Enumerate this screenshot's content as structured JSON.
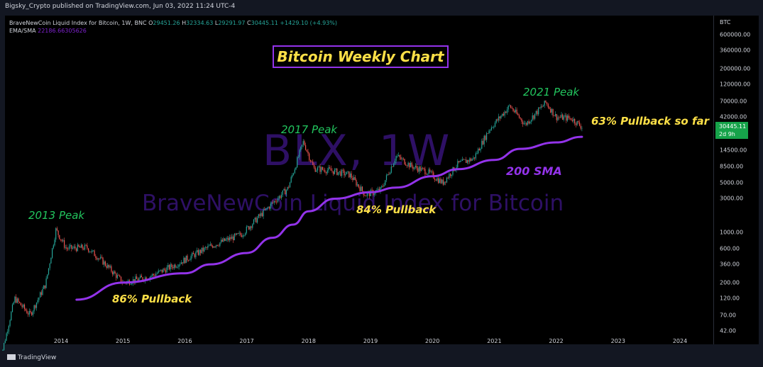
{
  "header": {
    "publisher": "Bigsky_Crypto published on TradingView.com, Jun 03, 2022 11:24 UTC-4"
  },
  "legend": {
    "symbol": "BraveNewCoin Liquid Index for Bitcoin, 1W, BNC",
    "open_label": "O",
    "open": "29451.26",
    "high_label": "H",
    "high": "32334.63",
    "low_label": "L",
    "low": "29291.97",
    "close_label": "C",
    "close": "30445.11",
    "change": "+1429.10 (+4.93%)",
    "indicator_label": "EMA/SMA",
    "indicator_value": "22186.66305626"
  },
  "watermark": {
    "ticker": "BLX, 1W",
    "name": "BraveNewCoin Liquid Index for Bitcoin"
  },
  "footer": {
    "brand": "TradingView"
  },
  "price_tag": {
    "price": "30445.11",
    "countdown": "2d 9h"
  },
  "colors": {
    "up": "#26a69a",
    "down": "#ef5350",
    "sma": "#9333ea",
    "peak_text": "#22c55e",
    "pullback_text": "#fde047",
    "price_tag": "#16a34a"
  },
  "chart_data": {
    "type": "candlestick",
    "title": "Bitcoin Weekly Chart",
    "y_scale": "log",
    "y_unit": "BTC",
    "y_ticks": [
      "600000.00",
      "360000.00",
      "200000.00",
      "120000.00",
      "70000.00",
      "42000.00",
      "14500.00",
      "8500.00",
      "5000.00",
      "3000.00",
      "1000.00",
      "600.00",
      "360.00",
      "200.00",
      "120.00",
      "70.00",
      "42.00"
    ],
    "x_ticks": [
      "2014",
      "2015",
      "2016",
      "2017",
      "2018",
      "2019",
      "2020",
      "2021",
      "2022",
      "2023",
      "2024"
    ],
    "price_series": [
      {
        "date": "2013-01",
        "value": 14
      },
      {
        "date": "2013-04",
        "value": 120
      },
      {
        "date": "2013-07",
        "value": 70
      },
      {
        "date": "2013-10",
        "value": 190
      },
      {
        "date": "2013-12",
        "value": 1100
      },
      {
        "date": "2014-02",
        "value": 600
      },
      {
        "date": "2014-06",
        "value": 620
      },
      {
        "date": "2014-09",
        "value": 400
      },
      {
        "date": "2015-01",
        "value": 200
      },
      {
        "date": "2015-06",
        "value": 240
      },
      {
        "date": "2015-11",
        "value": 350
      },
      {
        "date": "2016-06",
        "value": 650
      },
      {
        "date": "2016-12",
        "value": 950
      },
      {
        "date": "2017-06",
        "value": 2600
      },
      {
        "date": "2017-09",
        "value": 4200
      },
      {
        "date": "2017-12",
        "value": 19000
      },
      {
        "date": "2018-02",
        "value": 8000
      },
      {
        "date": "2018-05",
        "value": 7500
      },
      {
        "date": "2018-09",
        "value": 6500
      },
      {
        "date": "2018-12",
        "value": 3400
      },
      {
        "date": "2019-03",
        "value": 4000
      },
      {
        "date": "2019-06",
        "value": 12000
      },
      {
        "date": "2019-09",
        "value": 8500
      },
      {
        "date": "2019-12",
        "value": 7200
      },
      {
        "date": "2020-03",
        "value": 5000
      },
      {
        "date": "2020-06",
        "value": 9300
      },
      {
        "date": "2020-09",
        "value": 11000
      },
      {
        "date": "2020-12",
        "value": 28000
      },
      {
        "date": "2021-04",
        "value": 60000
      },
      {
        "date": "2021-07",
        "value": 33000
      },
      {
        "date": "2021-11",
        "value": 67000
      },
      {
        "date": "2022-01",
        "value": 42000
      },
      {
        "date": "2022-04",
        "value": 40000
      },
      {
        "date": "2022-06",
        "value": 30445
      }
    ],
    "sma_series": [
      {
        "date": "2014-04",
        "value": 115
      },
      {
        "date": "2015-01",
        "value": 200
      },
      {
        "date": "2016-01",
        "value": 270
      },
      {
        "date": "2016-06",
        "value": 360
      },
      {
        "date": "2017-01",
        "value": 520
      },
      {
        "date": "2017-06",
        "value": 850
      },
      {
        "date": "2017-10",
        "value": 1300
      },
      {
        "date": "2018-01",
        "value": 2000
      },
      {
        "date": "2018-06",
        "value": 3000
      },
      {
        "date": "2019-01",
        "value": 3700
      },
      {
        "date": "2019-06",
        "value": 4300
      },
      {
        "date": "2020-01",
        "value": 6200
      },
      {
        "date": "2020-06",
        "value": 7800
      },
      {
        "date": "2021-01",
        "value": 10500
      },
      {
        "date": "2021-06",
        "value": 15000
      },
      {
        "date": "2022-01",
        "value": 18500
      },
      {
        "date": "2022-06",
        "value": 22186
      }
    ],
    "annotations": {
      "peak_2013": "2013 Peak",
      "peak_2017": "2017 Peak",
      "peak_2021": "2021 Peak",
      "pullback_86": "86% Pullback",
      "pullback_84": "84% Pullback",
      "pullback_63": "63% Pullback so far",
      "sma_label": "200 SMA"
    },
    "grid": false
  }
}
